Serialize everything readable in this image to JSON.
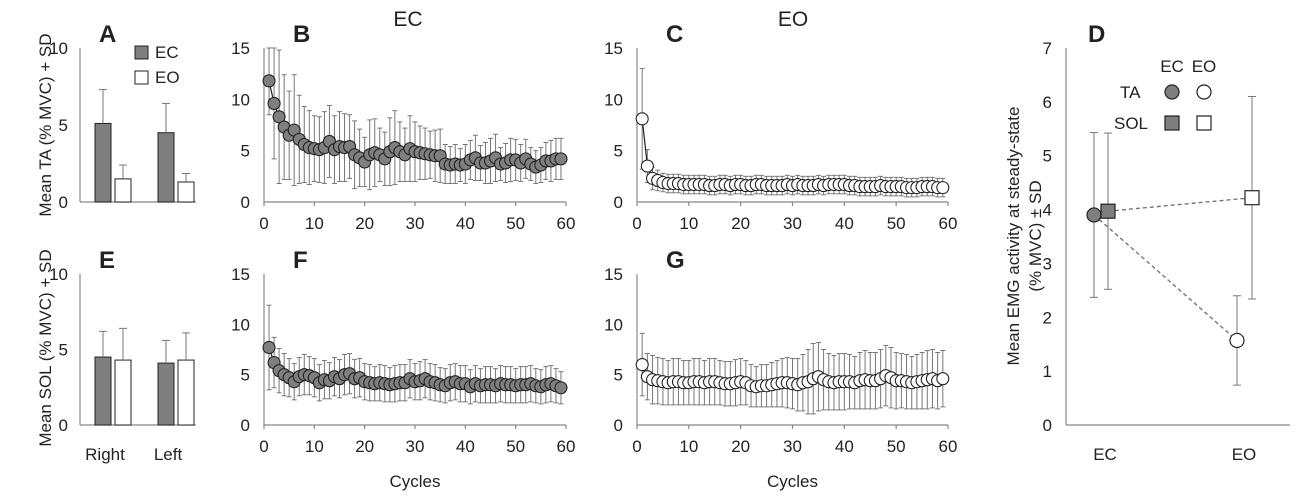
{
  "figure": {
    "headers": {
      "ec": "EC",
      "eo": "EO"
    },
    "x_label_cycles": "Cycles",
    "y_label_ta": "Mean TA (% MVC) + SD",
    "y_label_sol": "Mean SOL (% MVC) + SD",
    "y_label_d_line1": "Mean EMG activity at steady-state",
    "y_label_d_line2": "(% MVC) ± SD",
    "colors": {
      "ec_fill": "#7f7f7f",
      "eo_fill": "#ffffff",
      "stroke": "#222222",
      "error": "#777777"
    }
  },
  "chart_data": [
    {
      "id": "A",
      "type": "bar",
      "label": "A",
      "ylim": [
        0,
        10
      ],
      "yticks": [
        0,
        5,
        10
      ],
      "categories": [
        "Right",
        "Left"
      ],
      "show_category_labels": false,
      "legend": [
        {
          "name": "EC"
        },
        {
          "name": "EO"
        }
      ],
      "series": [
        {
          "name": "EC",
          "values": [
            5.1,
            4.5
          ],
          "sd": [
            2.2,
            1.9
          ]
        },
        {
          "name": "EO",
          "values": [
            1.5,
            1.3
          ],
          "sd": [
            0.9,
            0.55
          ]
        }
      ]
    },
    {
      "id": "E",
      "type": "bar",
      "label": "E",
      "ylim": [
        0,
        10
      ],
      "yticks": [
        0,
        5,
        10
      ],
      "categories": [
        "Right",
        "Left"
      ],
      "show_category_labels": true,
      "series": [
        {
          "name": "EC",
          "values": [
            4.5,
            4.1
          ],
          "sd": [
            1.7,
            1.5
          ]
        },
        {
          "name": "EO",
          "values": [
            4.3,
            4.3
          ],
          "sd": [
            2.1,
            1.8
          ]
        }
      ]
    },
    {
      "id": "B",
      "type": "line",
      "label": "B",
      "condition": "EC",
      "xlim": [
        0,
        60
      ],
      "xticks": [
        0,
        10,
        20,
        30,
        40,
        50,
        60
      ],
      "ylim": [
        0,
        15
      ],
      "yticks": [
        0,
        5,
        10,
        15
      ],
      "show_x_label": false,
      "x": [
        1,
        2,
        3,
        4,
        5,
        6,
        7,
        8,
        9,
        10,
        11,
        12,
        13,
        14,
        15,
        16,
        17,
        18,
        19,
        20,
        21,
        22,
        23,
        24,
        25,
        26,
        27,
        28,
        29,
        30,
        31,
        32,
        33,
        34,
        35,
        36,
        37,
        38,
        39,
        40,
        41,
        42,
        43,
        44,
        45,
        46,
        47,
        48,
        49,
        50,
        51,
        52,
        53,
        54,
        55,
        56,
        57,
        58,
        59
      ],
      "values": [
        11.8,
        9.6,
        8.3,
        7.3,
        6.5,
        7.0,
        6.1,
        5.6,
        5.3,
        5.2,
        5.1,
        5.3,
        5.9,
        5.1,
        5.4,
        5.3,
        5.4,
        4.6,
        4.3,
        3.9,
        4.6,
        4.8,
        4.6,
        4.2,
        4.9,
        5.3,
        4.9,
        4.6,
        5.2,
        4.9,
        4.8,
        4.7,
        4.6,
        4.5,
        4.5,
        3.7,
        3.6,
        3.7,
        3.6,
        3.7,
        4.1,
        4.3,
        3.8,
        3.8,
        4.0,
        4.3,
        3.7,
        3.8,
        4.1,
        4.1,
        3.8,
        4.2,
        3.7,
        3.4,
        3.6,
        4.0,
        4.0,
        4.2,
        4.2
      ],
      "sd": [
        3.3,
        5.4,
        6.5,
        5.1,
        4.3,
        5.4,
        4.3,
        3.7,
        3.6,
        3.2,
        3.2,
        3.5,
        3.5,
        3.3,
        3.4,
        3.3,
        3.1,
        3.3,
        2.8,
        2.4,
        3.4,
        3.3,
        2.6,
        2.6,
        3.3,
        3.6,
        2.9,
        2.6,
        3.2,
        2.9,
        2.6,
        2.5,
        2.3,
        2.5,
        2.6,
        1.9,
        1.8,
        1.9,
        1.6,
        1.9,
        1.9,
        2.2,
        1.7,
        2.0,
        2.2,
        2.3,
        1.6,
        1.9,
        2.1,
        2.0,
        1.8,
        1.9,
        1.6,
        1.6,
        1.7,
        1.8,
        2.0,
        2.0,
        2.0
      ],
      "marker": "filled-circle"
    },
    {
      "id": "C",
      "type": "line",
      "label": "C",
      "condition": "EO",
      "xlim": [
        0,
        60
      ],
      "xticks": [
        0,
        10,
        20,
        30,
        40,
        50,
        60
      ],
      "ylim": [
        0,
        15
      ],
      "yticks": [
        0,
        5,
        10,
        15
      ],
      "show_x_label": false,
      "x": [
        1,
        2,
        3,
        4,
        5,
        6,
        7,
        8,
        9,
        10,
        11,
        12,
        13,
        14,
        15,
        16,
        17,
        18,
        19,
        20,
        21,
        22,
        23,
        24,
        25,
        26,
        27,
        28,
        29,
        30,
        31,
        32,
        33,
        34,
        35,
        36,
        37,
        38,
        39,
        40,
        41,
        42,
        43,
        44,
        45,
        46,
        47,
        48,
        49,
        50,
        51,
        52,
        53,
        54,
        55,
        56,
        57,
        58,
        59
      ],
      "values": [
        8.1,
        3.5,
        2.3,
        2.1,
        1.9,
        1.8,
        1.8,
        1.8,
        1.7,
        1.7,
        1.7,
        1.7,
        1.7,
        1.6,
        1.6,
        1.7,
        1.7,
        1.6,
        1.7,
        1.7,
        1.6,
        1.6,
        1.7,
        1.7,
        1.6,
        1.6,
        1.6,
        1.6,
        1.7,
        1.6,
        1.7,
        1.6,
        1.6,
        1.6,
        1.7,
        1.6,
        1.7,
        1.7,
        1.7,
        1.7,
        1.6,
        1.6,
        1.5,
        1.5,
        1.5,
        1.5,
        1.6,
        1.5,
        1.5,
        1.5,
        1.5,
        1.4,
        1.4,
        1.4,
        1.5,
        1.5,
        1.5,
        1.4,
        1.4
      ],
      "sd": [
        4.9,
        1.6,
        1.1,
        1.0,
        0.9,
        0.9,
        0.9,
        0.9,
        0.9,
        0.9,
        0.9,
        0.9,
        0.9,
        0.9,
        0.9,
        0.9,
        0.9,
        0.9,
        0.9,
        0.9,
        0.9,
        0.9,
        0.9,
        0.9,
        0.9,
        0.9,
        0.9,
        0.9,
        0.9,
        0.9,
        0.9,
        0.9,
        0.9,
        0.9,
        0.9,
        0.9,
        0.9,
        0.9,
        0.9,
        0.9,
        0.9,
        0.9,
        0.9,
        0.9,
        0.9,
        0.9,
        0.9,
        0.9,
        0.9,
        0.9,
        0.9,
        0.9,
        0.9,
        0.9,
        0.9,
        0.9,
        0.9,
        0.9,
        0.9
      ],
      "marker": "open-circle"
    },
    {
      "id": "F",
      "type": "line",
      "label": "F",
      "condition": "EC",
      "xlim": [
        0,
        60
      ],
      "xticks": [
        0,
        10,
        20,
        30,
        40,
        50,
        60
      ],
      "ylim": [
        0,
        15
      ],
      "yticks": [
        0,
        5,
        10,
        15
      ],
      "show_x_label": true,
      "x": [
        1,
        2,
        3,
        4,
        5,
        6,
        7,
        8,
        9,
        10,
        11,
        12,
        13,
        14,
        15,
        16,
        17,
        18,
        19,
        20,
        21,
        22,
        23,
        24,
        25,
        26,
        27,
        28,
        29,
        30,
        31,
        32,
        33,
        34,
        35,
        36,
        37,
        38,
        39,
        40,
        41,
        42,
        43,
        44,
        45,
        46,
        47,
        48,
        49,
        50,
        51,
        52,
        53,
        54,
        55,
        56,
        57,
        58,
        59
      ],
      "values": [
        7.7,
        6.2,
        5.4,
        5.0,
        4.7,
        4.3,
        4.8,
        5.0,
        4.9,
        4.7,
        4.2,
        4.5,
        4.4,
        4.8,
        4.6,
        5.0,
        5.1,
        4.6,
        4.7,
        4.3,
        4.2,
        4.1,
        4.2,
        4.1,
        4.0,
        4.1,
        4.2,
        4.2,
        4.6,
        4.3,
        4.4,
        4.6,
        4.3,
        4.2,
        4.0,
        3.9,
        4.2,
        4.3,
        4.1,
        4.1,
        3.8,
        4.1,
        3.9,
        4.0,
        4.0,
        3.9,
        4.1,
        4.0,
        4.0,
        3.9,
        4.0,
        4.0,
        4.1,
        3.9,
        3.8,
        4.0,
        4.1,
        3.9,
        3.7
      ],
      "sd": [
        4.2,
        2.5,
        2.2,
        2.1,
        1.9,
        1.8,
        1.9,
        2.0,
        1.9,
        1.9,
        1.8,
        1.9,
        1.8,
        1.9,
        1.9,
        2.0,
        2.0,
        1.9,
        1.9,
        1.8,
        1.8,
        1.7,
        1.8,
        1.8,
        1.7,
        1.8,
        1.8,
        1.8,
        1.9,
        1.8,
        1.9,
        1.9,
        1.8,
        1.8,
        1.7,
        1.7,
        1.8,
        1.8,
        1.8,
        1.8,
        1.7,
        1.8,
        1.7,
        1.8,
        1.8,
        1.7,
        1.8,
        1.8,
        1.8,
        1.7,
        1.8,
        1.8,
        1.8,
        1.7,
        1.7,
        1.8,
        1.8,
        1.7,
        1.6
      ],
      "marker": "filled-circle"
    },
    {
      "id": "G",
      "type": "line",
      "label": "G",
      "condition": "EO",
      "xlim": [
        0,
        60
      ],
      "xticks": [
        0,
        10,
        20,
        30,
        40,
        50,
        60
      ],
      "ylim": [
        0,
        15
      ],
      "yticks": [
        0,
        5,
        10,
        15
      ],
      "show_x_label": true,
      "x": [
        1,
        2,
        3,
        4,
        5,
        6,
        7,
        8,
        9,
        10,
        11,
        12,
        13,
        14,
        15,
        16,
        17,
        18,
        19,
        20,
        21,
        22,
        23,
        24,
        25,
        26,
        27,
        28,
        29,
        30,
        31,
        32,
        33,
        34,
        35,
        36,
        37,
        38,
        39,
        40,
        41,
        42,
        43,
        44,
        45,
        46,
        47,
        48,
        49,
        50,
        51,
        52,
        53,
        54,
        55,
        56,
        57,
        58,
        59
      ],
      "values": [
        6.0,
        4.8,
        4.5,
        4.4,
        4.3,
        4.2,
        4.3,
        4.3,
        4.2,
        4.2,
        4.3,
        4.3,
        4.2,
        4.3,
        4.3,
        4.2,
        4.1,
        4.1,
        4.2,
        4.3,
        4.2,
        3.9,
        3.8,
        3.9,
        3.9,
        4.0,
        4.1,
        4.2,
        4.2,
        4.1,
        4.0,
        4.2,
        4.3,
        4.6,
        4.8,
        4.5,
        4.3,
        4.2,
        4.3,
        4.3,
        4.3,
        4.2,
        4.4,
        4.5,
        4.4,
        4.4,
        4.6,
        4.9,
        4.7,
        4.4,
        4.4,
        4.3,
        4.2,
        4.3,
        4.4,
        4.5,
        4.6,
        4.4,
        4.6
      ],
      "sd": [
        3.1,
        2.3,
        2.4,
        2.3,
        2.3,
        2.2,
        2.3,
        2.3,
        2.2,
        2.2,
        2.3,
        2.3,
        2.2,
        2.3,
        2.3,
        2.2,
        2.2,
        2.2,
        2.3,
        2.3,
        2.2,
        2.1,
        2.0,
        2.1,
        2.1,
        2.2,
        2.3,
        2.4,
        2.5,
        2.5,
        2.6,
        2.8,
        3.2,
        3.5,
        3.4,
        3.0,
        2.8,
        2.7,
        2.8,
        2.8,
        2.7,
        2.6,
        2.8,
        2.9,
        2.8,
        2.8,
        2.9,
        3.0,
        3.0,
        2.8,
        2.7,
        2.7,
        2.6,
        2.7,
        2.8,
        2.9,
        2.9,
        2.8,
        2.8
      ],
      "marker": "open-circle"
    },
    {
      "id": "D",
      "type": "scatter",
      "label": "D",
      "ylim": [
        0,
        7
      ],
      "yticks": [
        0,
        1,
        2,
        3,
        4,
        5,
        6,
        7
      ],
      "categories": [
        "EC",
        "EO"
      ],
      "legend_header": [
        "EC",
        "EO"
      ],
      "series": [
        {
          "name": "TA",
          "marker": "circle",
          "values": [
            3.9,
            1.57
          ],
          "sd": [
            1.53,
            0.83
          ]
        },
        {
          "name": "SOL",
          "marker": "square",
          "values": [
            3.97,
            4.22
          ],
          "sd": [
            1.45,
            1.88
          ]
        }
      ]
    }
  ]
}
